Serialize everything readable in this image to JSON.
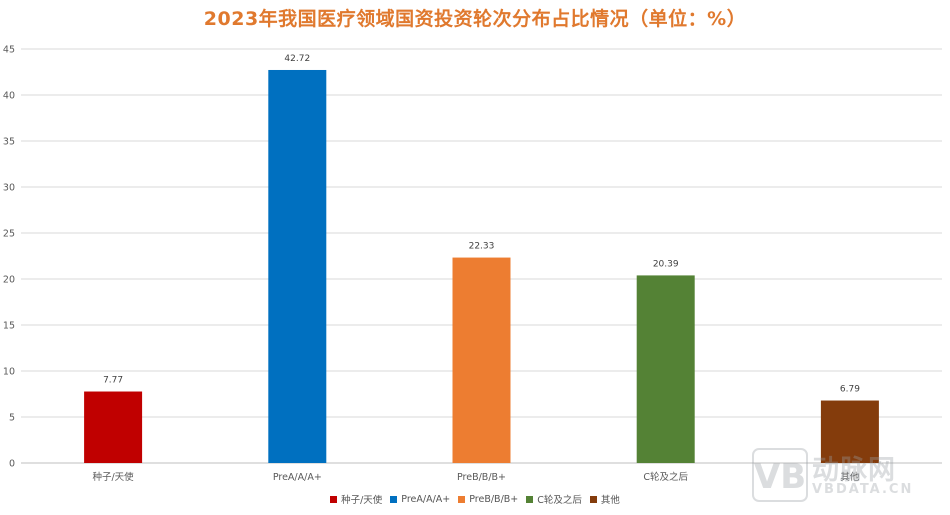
{
  "chart_data": {
    "type": "bar",
    "title": "2023年我国医疗领域国资投资轮次分布占比情况（单位：%）",
    "xlabel": "",
    "ylabel": "",
    "ylim": [
      0,
      45
    ],
    "yticks": [
      0,
      5,
      10,
      15,
      20,
      25,
      30,
      35,
      40,
      45
    ],
    "grid": true,
    "legend_position": "bottom",
    "categories": [
      "种子/天使",
      "PreA/A/A+",
      "PreB/B/B+",
      "C轮及之后",
      "其他"
    ],
    "values": [
      7.77,
      42.72,
      22.33,
      20.39,
      6.79
    ],
    "data_labels": [
      "7.77",
      "42.72",
      "22.33",
      "20.39",
      "6.79"
    ],
    "colors": [
      "#c00000",
      "#0070c0",
      "#ed7d31",
      "#548235",
      "#843c0c"
    ]
  },
  "legend": {
    "items": [
      {
        "label": "种子/天使",
        "color": "#c00000"
      },
      {
        "label": "PreA/A/A+",
        "color": "#0070c0"
      },
      {
        "label": "PreB/B/B+",
        "color": "#ed7d31"
      },
      {
        "label": "C轮及之后",
        "color": "#548235"
      },
      {
        "label": "其他",
        "color": "#843c0c"
      }
    ]
  },
  "watermark": {
    "text_cn": "动脉网",
    "text_en": "VBDATA.CN",
    "logo_letters": "VB"
  }
}
